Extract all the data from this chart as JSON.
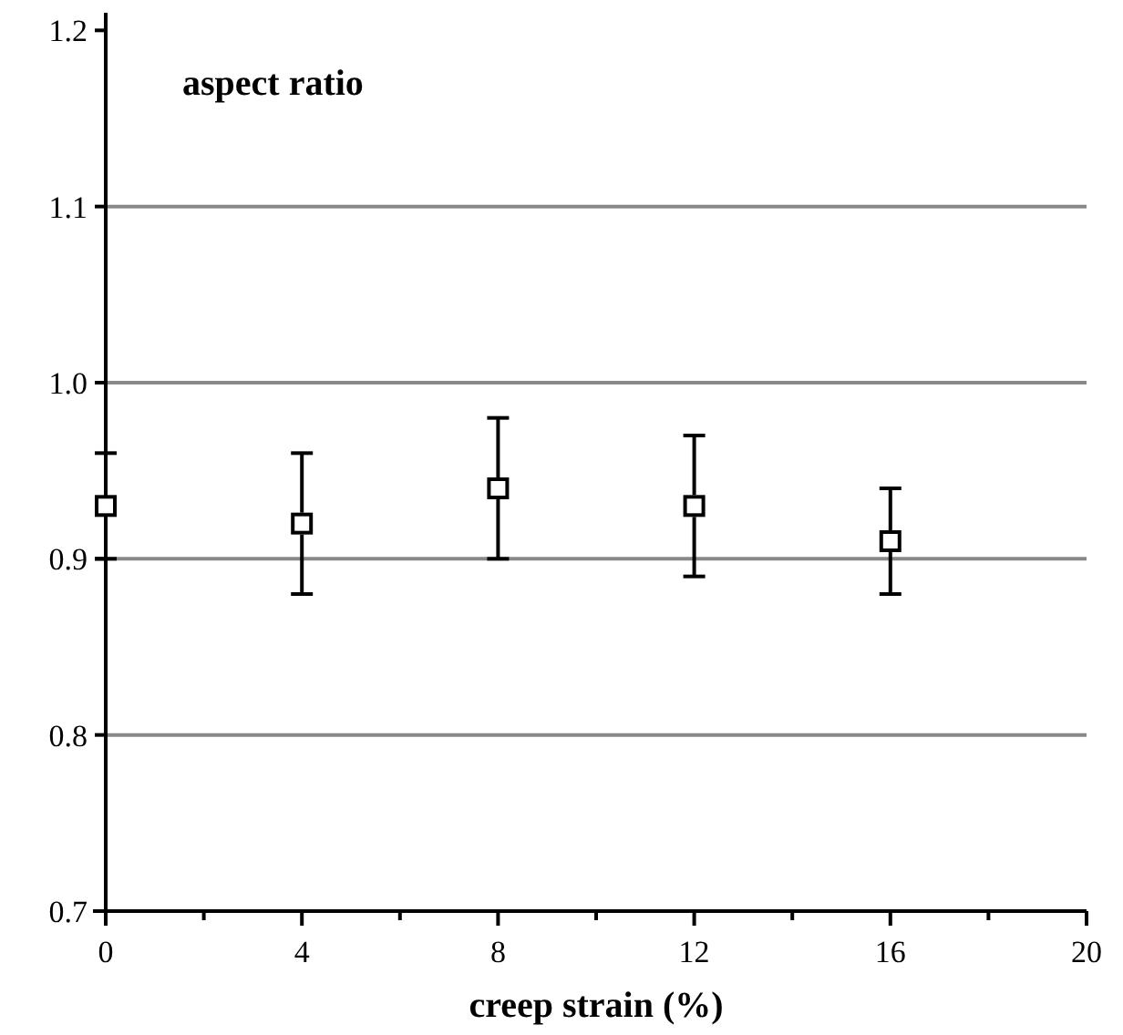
{
  "chart_data": {
    "type": "scatter",
    "title": "aspect ratio",
    "xlabel": "creep strain (%)",
    "x": [
      0,
      4,
      8,
      12,
      16
    ],
    "values": [
      0.93,
      0.92,
      0.94,
      0.93,
      0.91
    ],
    "errors": [
      [
        0.9,
        0.96
      ],
      [
        0.88,
        0.96
      ],
      [
        0.9,
        0.98
      ],
      [
        0.89,
        0.97
      ],
      [
        0.88,
        0.94
      ]
    ],
    "color": "#000000",
    "marker": "square",
    "xlim": [
      0,
      20
    ],
    "xticks": [
      0,
      {
        "value": 2,
        "label": null
      },
      4,
      {
        "value": 6,
        "label": null
      },
      8,
      {
        "value": 10,
        "label": null
      },
      12,
      {
        "value": 14,
        "label": null
      },
      16,
      {
        "value": 18,
        "label": null
      },
      20
    ],
    "ylim": [
      0.7,
      1.21
    ],
    "yticks": [
      {
        "value": 0.7,
        "label": "0.7"
      },
      {
        "value": 0.8,
        "label": "0.8"
      },
      {
        "value": 0.9,
        "label": "0.9"
      },
      {
        "value": 1.0,
        "label": "1.0"
      },
      {
        "value": 1.1,
        "label": "1.1"
      },
      {
        "value": 1.2,
        "label": "1.2"
      }
    ],
    "grid": "y"
  }
}
